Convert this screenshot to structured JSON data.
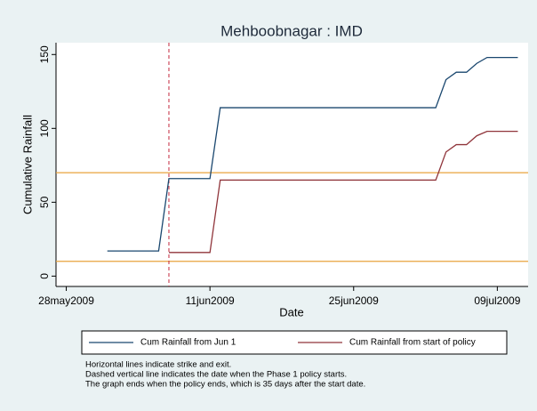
{
  "chart_data": {
    "type": "line",
    "title": "Mehboobnagar : IMD",
    "xlabel": "Date",
    "ylabel": "Cumulative Rainfall",
    "series": [
      {
        "name": "Cum Rainfall from Jun 1",
        "color": "#1a476f",
        "x": [
          "2009-06-01",
          "2009-06-06",
          "2009-06-07",
          "2009-06-11",
          "2009-06-12",
          "2009-07-03",
          "2009-07-04",
          "2009-07-05",
          "2009-07-06",
          "2009-07-07",
          "2009-07-08",
          "2009-07-11"
        ],
        "values": [
          17,
          17,
          66,
          66,
          114,
          114,
          133,
          138,
          138,
          144,
          148,
          148
        ]
      },
      {
        "name": "Cum Rainfall from start of policy",
        "color": "#90353b",
        "x": [
          "2009-06-07",
          "2009-06-11",
          "2009-06-12",
          "2009-07-03",
          "2009-07-04",
          "2009-07-05",
          "2009-07-06",
          "2009-07-07",
          "2009-07-08",
          "2009-07-11"
        ],
        "values": [
          16,
          16,
          65,
          65,
          84,
          89,
          89,
          95,
          98,
          98
        ]
      }
    ],
    "hlines": [
      {
        "value": 70,
        "color": "#e8a33c"
      },
      {
        "value": 10,
        "color": "#e8a33c"
      }
    ],
    "vline": {
      "value": "2009-06-07",
      "color": "#c4283c",
      "dashed": true
    },
    "xlim": [
      "2009-05-27",
      "2009-07-12"
    ],
    "xticks": [
      {
        "value": "2009-05-28",
        "label": "28may2009"
      },
      {
        "value": "2009-06-11",
        "label": "11jun2009"
      },
      {
        "value": "2009-06-25",
        "label": "25jun2009"
      },
      {
        "value": "2009-07-09",
        "label": "09jul2009"
      }
    ],
    "ylim": [
      -7,
      158
    ],
    "yticks": [
      0,
      50,
      100,
      150
    ],
    "notes": [
      "Horizontal lines indicate strike and exit.",
      "Dashed vertical line indicates the date when the Phase 1 policy starts.",
      "The graph ends when the policy ends, which is 35 days after the start date."
    ]
  }
}
